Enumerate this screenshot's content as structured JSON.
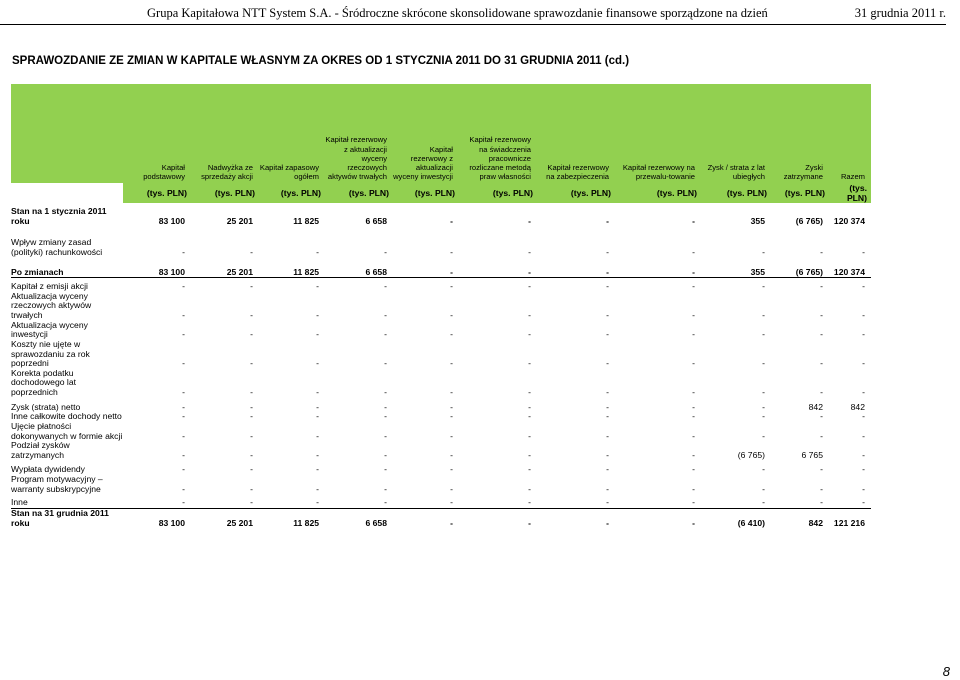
{
  "running_header": {
    "company_text": "Grupa Kapitałowa NTT System S.A. - Śródroczne skrócone skonsolidowane sprawozdanie finansowe sporządzone na dzień",
    "date_text": "31 grudnia 2011 r."
  },
  "title": "SPRAWOZDANIE ZE ZMIAN W KAPITALE WŁASNYM ZA OKRES OD 1 STYCZNIA 2011 DO 31 GRUDNIA 2011 (cd.)",
  "columns": [
    {
      "name": "Kapitał podstawowy",
      "unit": "(tys. PLN)"
    },
    {
      "name": "Nadwyżka ze sprzedaży akcji",
      "unit": "(tys. PLN)"
    },
    {
      "name": "Kapitał zapasowy ogółem",
      "unit": "(tys. PLN)"
    },
    {
      "name": "Kapitał rezerwowy z aktualizacji wyceny rzeczowych aktywów trwałych",
      "unit": "(tys. PLN)"
    },
    {
      "name": "Kapitał rezerwowy z aktualizacji wyceny inwestycji",
      "unit": "(tys. PLN)"
    },
    {
      "name": "Kapitał rezerwowy na świadczenia pracownicze rozliczane metodą praw własności",
      "unit": "(tys. PLN)"
    },
    {
      "name": "Kapitał rezerwowy na zabezpieczenia",
      "unit": "(tys. PLN)"
    },
    {
      "name": "Kapitał rezerwowy na przewalu-towanie",
      "unit": "(tys. PLN)"
    },
    {
      "name": "Zysk / strata z lat ubiegłych",
      "unit": "(tys. PLN)"
    },
    {
      "name": "Zyski zatrzymane",
      "unit": "(tys. PLN)"
    },
    {
      "name": "Razem",
      "unit": "(tys. PLN)"
    }
  ],
  "rows": [
    {
      "label": "Stan na 1 stycznia 2011 roku",
      "values": [
        "83 100",
        "25 201",
        "11 825",
        "6 658",
        "-",
        "-",
        "-",
        "-",
        "355",
        "(6 765)",
        "120 374"
      ],
      "bold": true
    },
    {
      "label": "Wpływ zmiany zasad (polityki) rachunkowości",
      "values": [
        "-",
        "-",
        "-",
        "-",
        "-",
        "-",
        "-",
        "-",
        "-",
        "-",
        "-"
      ]
    },
    {
      "label": "Po zmianach",
      "values": [
        "83 100",
        "25 201",
        "11 825",
        "6 658",
        "-",
        "-",
        "-",
        "-",
        "355",
        "(6 765)",
        "120 374"
      ],
      "bold": true
    },
    {
      "label": "Kapitał z emisji akcji",
      "values": [
        "-",
        "-",
        "-",
        "-",
        "-",
        "-",
        "-",
        "-",
        "-",
        "-",
        "-"
      ]
    },
    {
      "label": "Aktualizacja wyceny rzeczowych aktywów trwałych",
      "values": [
        "-",
        "-",
        "-",
        "-",
        "-",
        "-",
        "-",
        "-",
        "-",
        "-",
        "-"
      ]
    },
    {
      "label": "Aktualizacja wyceny inwestycji",
      "values": [
        "-",
        "-",
        "-",
        "-",
        "-",
        "-",
        "-",
        "-",
        "-",
        "-",
        "-"
      ]
    },
    {
      "label": "Koszty nie ujęte w sprawozdaniu za rok poprzedni",
      "values": [
        "-",
        "-",
        "-",
        "-",
        "-",
        "-",
        "-",
        "-",
        "-",
        "-",
        "-"
      ]
    },
    {
      "label": "Korekta podatku dochodowego lat poprzednich",
      "values": [
        "-",
        "-",
        "-",
        "-",
        "-",
        "-",
        "-",
        "-",
        "-",
        "-",
        "-"
      ]
    },
    {
      "label": "Zysk (strata) netto",
      "values": [
        "-",
        "-",
        "-",
        "-",
        "-",
        "-",
        "-",
        "-",
        "-",
        "842",
        "842"
      ]
    },
    {
      "label": "Inne całkowite dochody netto",
      "values": [
        "-",
        "-",
        "-",
        "-",
        "-",
        "-",
        "-",
        "-",
        "-",
        "-",
        "-"
      ]
    },
    {
      "label": "Ujęcie płatności dokonywanych w formie akcji",
      "values": [
        "-",
        "-",
        "-",
        "-",
        "-",
        "-",
        "-",
        "-",
        "-",
        "-",
        "-"
      ]
    },
    {
      "label": "Podział zysków zatrzymanych",
      "values": [
        "-",
        "-",
        "-",
        "-",
        "-",
        "-",
        "-",
        "-",
        "(6 765)",
        "6 765",
        "-"
      ]
    },
    {
      "label": "Wypłata dywidendy",
      "values": [
        "-",
        "-",
        "-",
        "-",
        "-",
        "-",
        "-",
        "-",
        "-",
        "-",
        "-"
      ]
    },
    {
      "label": "Program motywacyjny – warranty subskrypcyjne",
      "values": [
        "-",
        "-",
        "-",
        "-",
        "-",
        "-",
        "-",
        "-",
        "-",
        "-",
        "-"
      ]
    },
    {
      "label": "Inne",
      "values": [
        "-",
        "-",
        "-",
        "-",
        "-",
        "-",
        "-",
        "-",
        "-",
        "-",
        "-"
      ]
    },
    {
      "label": "Stan na 31 grudnia 2011 roku",
      "values": [
        "83 100",
        "25 201",
        "11 825",
        "6 658",
        "-",
        "-",
        "-",
        "-",
        "(6 410)",
        "842",
        "121 216"
      ],
      "bold": true
    }
  ],
  "page_number": "8",
  "colors": {
    "header_fill": "#92d050"
  }
}
